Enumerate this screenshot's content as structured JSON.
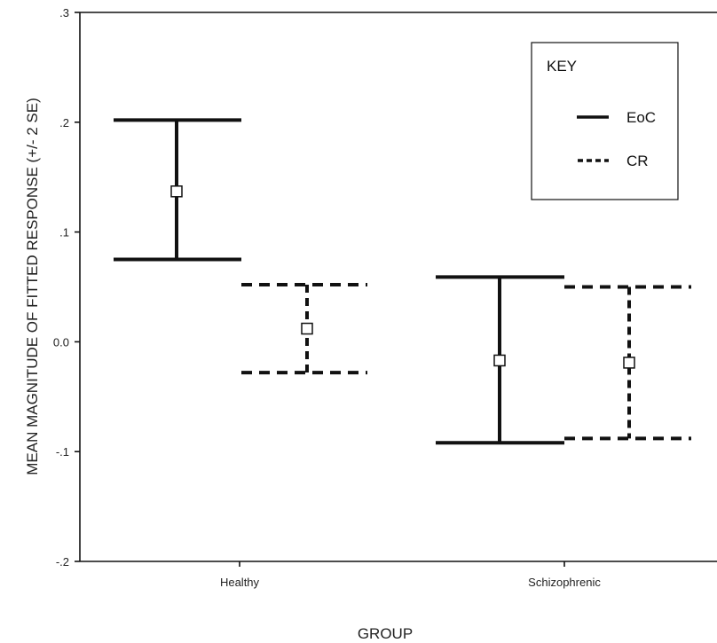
{
  "chart_data": {
    "type": "errorbar",
    "title": "",
    "xlabel": "GROUP",
    "ylabel": "MEAN MAGNITUDE OF FITTED RESPONSE (+/- 2 SE)",
    "ylim": [
      -0.2,
      0.3
    ],
    "yticks": [
      {
        "value": 0.3,
        "label": ".3"
      },
      {
        "value": 0.2,
        "label": ".2"
      },
      {
        "value": 0.1,
        "label": ".1"
      },
      {
        "value": 0.0,
        "label": "0.0"
      },
      {
        "value": -0.1,
        "label": "-.1"
      },
      {
        "value": -0.2,
        "label": "-.2"
      }
    ],
    "categories": [
      "Healthy",
      "Schizophrenic"
    ],
    "series": [
      {
        "name": "EoC",
        "line_style": "solid",
        "points": [
          {
            "category": "Healthy",
            "mean": 0.137,
            "lower": 0.075,
            "upper": 0.202
          },
          {
            "category": "Schizophrenic",
            "mean": -0.017,
            "lower": -0.092,
            "upper": 0.059
          }
        ]
      },
      {
        "name": "CR",
        "line_style": "dashed",
        "points": [
          {
            "category": "Healthy",
            "mean": 0.012,
            "lower": -0.028,
            "upper": 0.052
          },
          {
            "category": "Schizophrenic",
            "mean": -0.019,
            "lower": -0.088,
            "upper": 0.05
          }
        ]
      }
    ],
    "legend": {
      "title": "KEY",
      "position": "top-right"
    },
    "grid": false
  }
}
